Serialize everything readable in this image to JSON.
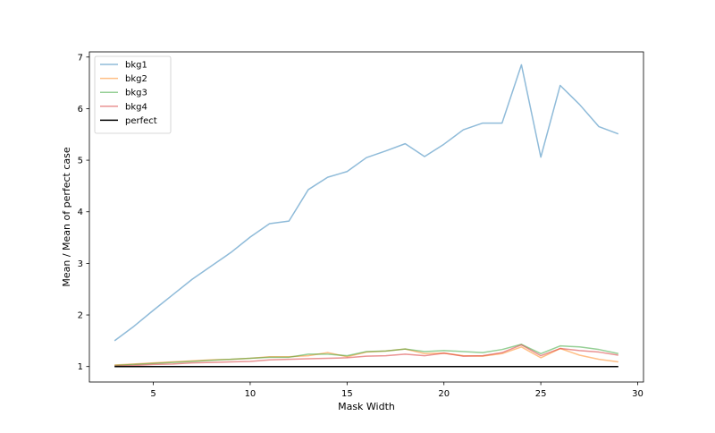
{
  "chart_data": {
    "type": "line",
    "title": "",
    "xlabel": "Mask Width",
    "ylabel": "Mean / Mean of perfect case",
    "xlim": [
      1.7,
      30.3
    ],
    "ylim": [
      0.7,
      7.1
    ],
    "xticks": [
      5,
      10,
      15,
      20,
      25,
      30
    ],
    "yticks": [
      1,
      2,
      3,
      4,
      5,
      6,
      7
    ],
    "grid": false,
    "legend_position": "top-left",
    "x": [
      3,
      4,
      5,
      6,
      7,
      8,
      9,
      10,
      11,
      12,
      13,
      14,
      15,
      16,
      17,
      18,
      19,
      20,
      21,
      22,
      23,
      24,
      25,
      26,
      27,
      28,
      29
    ],
    "series": [
      {
        "name": "bkg1",
        "color": "#1f77b4",
        "opacity": 0.5,
        "values": [
          1.5,
          1.78,
          2.09,
          2.39,
          2.69,
          2.95,
          3.21,
          3.51,
          3.77,
          3.82,
          4.43,
          4.67,
          4.78,
          5.05,
          5.18,
          5.32,
          5.07,
          5.31,
          5.59,
          5.72,
          5.72,
          6.85,
          5.06,
          6.45,
          6.08,
          5.65,
          5.51
        ]
      },
      {
        "name": "bkg2",
        "color": "#ff7f0e",
        "opacity": 0.5,
        "values": [
          1.03,
          1.05,
          1.07,
          1.09,
          1.11,
          1.13,
          1.14,
          1.16,
          1.19,
          1.19,
          1.21,
          1.27,
          1.19,
          1.28,
          1.3,
          1.34,
          1.25,
          1.26,
          1.21,
          1.2,
          1.25,
          1.38,
          1.17,
          1.35,
          1.22,
          1.14,
          1.09
        ]
      },
      {
        "name": "bkg3",
        "color": "#2ca02c",
        "opacity": 0.5,
        "values": [
          1.02,
          1.04,
          1.06,
          1.08,
          1.1,
          1.12,
          1.14,
          1.16,
          1.18,
          1.18,
          1.24,
          1.24,
          1.21,
          1.29,
          1.3,
          1.34,
          1.29,
          1.31,
          1.29,
          1.27,
          1.33,
          1.43,
          1.25,
          1.4,
          1.38,
          1.33,
          1.25
        ]
      },
      {
        "name": "bkg4",
        "color": "#d62728",
        "opacity": 0.5,
        "values": [
          1.01,
          1.02,
          1.04,
          1.05,
          1.07,
          1.08,
          1.09,
          1.1,
          1.13,
          1.14,
          1.15,
          1.16,
          1.17,
          1.2,
          1.21,
          1.24,
          1.21,
          1.26,
          1.2,
          1.21,
          1.27,
          1.42,
          1.21,
          1.35,
          1.31,
          1.28,
          1.22
        ]
      },
      {
        "name": "perfect",
        "color": "#000000",
        "opacity": 1,
        "values": [
          1,
          1,
          1,
          1,
          1,
          1,
          1,
          1,
          1,
          1,
          1,
          1,
          1,
          1,
          1,
          1,
          1,
          1,
          1,
          1,
          1,
          1,
          1,
          1,
          1,
          1,
          1
        ]
      }
    ]
  }
}
